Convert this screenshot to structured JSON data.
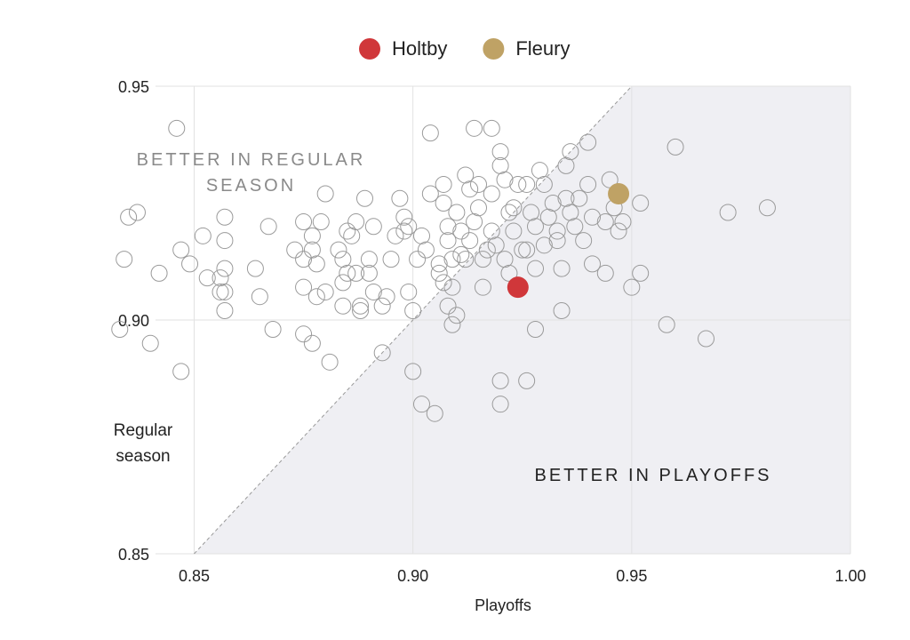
{
  "chart_data": {
    "type": "scatter",
    "xlabel": "Playoffs",
    "ylabel": "Regular season",
    "annotations": [
      "BETTER IN REGULAR SEASON",
      "BETTER IN PLAYOFFS"
    ],
    "xlim": [
      0.83,
      1.0
    ],
    "ylim": [
      0.85,
      0.95
    ],
    "xticks": [
      {
        "value": 0.85,
        "label": "0.85"
      },
      {
        "value": 0.9,
        "label": "0.90"
      },
      {
        "value": 0.95,
        "label": "0.95"
      },
      {
        "value": 1.0,
        "label": "1.00"
      }
    ],
    "yticks": [
      {
        "value": 0.85,
        "label": "0.85"
      },
      {
        "value": 0.9,
        "label": "0.90"
      },
      {
        "value": 0.95,
        "label": "0.95"
      }
    ],
    "grid": true,
    "legend": "top",
    "series": [
      {
        "name": "Holtby",
        "color": "#d0373a",
        "x": [
          0.924
        ],
        "y": [
          0.907
        ]
      },
      {
        "name": "Fleury",
        "color": "#bfa265",
        "x": [
          0.947
        ],
        "y": [
          0.927
        ]
      }
    ],
    "others": {
      "color": "#9a9a9a",
      "x": [
        0.846,
        0.835,
        0.837,
        0.834,
        0.833,
        0.84,
        0.842,
        0.847,
        0.849,
        0.847,
        0.852,
        0.853,
        0.856,
        0.857,
        0.857,
        0.857,
        0.856,
        0.857,
        0.857,
        0.864,
        0.865,
        0.867,
        0.868,
        0.873,
        0.875,
        0.875,
        0.875,
        0.875,
        0.877,
        0.877,
        0.877,
        0.878,
        0.879,
        0.88,
        0.88,
        0.881,
        0.878,
        0.883,
        0.884,
        0.884,
        0.884,
        0.885,
        0.885,
        0.886,
        0.887,
        0.887,
        0.888,
        0.888,
        0.889,
        0.89,
        0.89,
        0.891,
        0.891,
        0.893,
        0.893,
        0.894,
        0.895,
        0.896,
        0.897,
        0.898,
        0.898,
        0.899,
        0.899,
        0.9,
        0.9,
        0.901,
        0.902,
        0.902,
        0.903,
        0.904,
        0.904,
        0.905,
        0.906,
        0.906,
        0.907,
        0.907,
        0.907,
        0.908,
        0.908,
        0.908,
        0.909,
        0.909,
        0.909,
        0.91,
        0.91,
        0.911,
        0.911,
        0.912,
        0.912,
        0.913,
        0.913,
        0.914,
        0.914,
        0.915,
        0.915,
        0.916,
        0.916,
        0.917,
        0.918,
        0.918,
        0.918,
        0.919,
        0.92,
        0.92,
        0.92,
        0.92,
        0.921,
        0.921,
        0.922,
        0.922,
        0.923,
        0.923,
        0.924,
        0.925,
        0.926,
        0.926,
        0.926,
        0.927,
        0.928,
        0.928,
        0.928,
        0.929,
        0.93,
        0.93,
        0.931,
        0.932,
        0.933,
        0.933,
        0.934,
        0.934,
        0.935,
        0.935,
        0.936,
        0.936,
        0.937,
        0.938,
        0.939,
        0.94,
        0.94,
        0.941,
        0.941,
        0.944,
        0.944,
        0.945,
        0.946,
        0.947,
        0.948,
        0.95,
        0.952,
        0.952,
        0.958,
        0.96,
        0.967,
        0.972,
        0.981
      ],
      "y": [
        0.941,
        0.922,
        0.923,
        0.913,
        0.898,
        0.895,
        0.91,
        0.915,
        0.912,
        0.889,
        0.918,
        0.909,
        0.909,
        0.922,
        0.917,
        0.911,
        0.906,
        0.906,
        0.902,
        0.911,
        0.905,
        0.92,
        0.898,
        0.915,
        0.921,
        0.913,
        0.907,
        0.897,
        0.895,
        0.918,
        0.915,
        0.912,
        0.921,
        0.927,
        0.906,
        0.891,
        0.905,
        0.915,
        0.913,
        0.908,
        0.903,
        0.919,
        0.91,
        0.918,
        0.921,
        0.91,
        0.902,
        0.903,
        0.926,
        0.913,
        0.91,
        0.92,
        0.906,
        0.903,
        0.893,
        0.905,
        0.913,
        0.918,
        0.926,
        0.919,
        0.922,
        0.92,
        0.906,
        0.902,
        0.889,
        0.913,
        0.882,
        0.918,
        0.915,
        0.927,
        0.94,
        0.88,
        0.912,
        0.91,
        0.908,
        0.925,
        0.929,
        0.903,
        0.92,
        0.917,
        0.913,
        0.907,
        0.899,
        0.901,
        0.923,
        0.914,
        0.919,
        0.931,
        0.913,
        0.928,
        0.917,
        0.941,
        0.921,
        0.929,
        0.924,
        0.913,
        0.907,
        0.915,
        0.941,
        0.927,
        0.919,
        0.916,
        0.936,
        0.933,
        0.887,
        0.882,
        0.93,
        0.913,
        0.923,
        0.91,
        0.924,
        0.919,
        0.929,
        0.915,
        0.915,
        0.887,
        0.929,
        0.923,
        0.92,
        0.898,
        0.911,
        0.932,
        0.929,
        0.916,
        0.922,
        0.925,
        0.919,
        0.917,
        0.902,
        0.911,
        0.926,
        0.933,
        0.936,
        0.923,
        0.92,
        0.926,
        0.917,
        0.929,
        0.938,
        0.922,
        0.912,
        0.921,
        0.91,
        0.93,
        0.924,
        0.919,
        0.921,
        0.907,
        0.925,
        0.91,
        0.899,
        0.937,
        0.896,
        0.923,
        0.924
      ]
    }
  }
}
